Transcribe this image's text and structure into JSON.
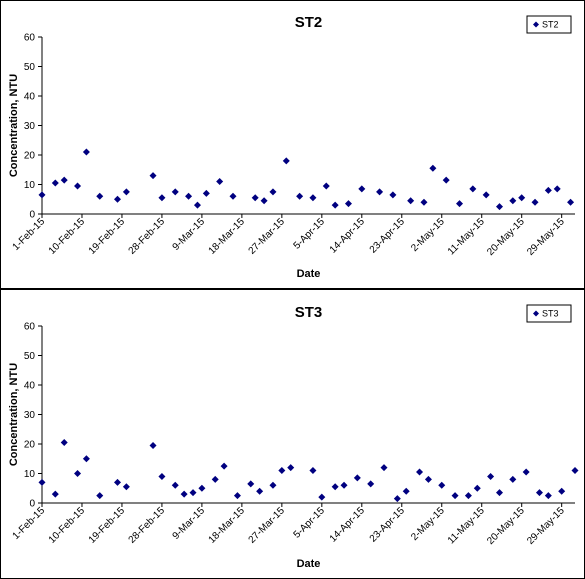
{
  "chart_data": [
    {
      "type": "scatter",
      "title": "ST2",
      "xlabel": "Date",
      "ylabel": "Concentration, NTU",
      "ylim": [
        0,
        60
      ],
      "yticks": [
        "0",
        "10",
        "20",
        "30",
        "40",
        "50",
        "60"
      ],
      "xlim": [
        "1-Feb-15",
        "1-Jun-15"
      ],
      "xticks": [
        "1-Feb-15",
        "10-Feb-15",
        "19-Feb-15",
        "28-Feb-15",
        "9-Mar-15",
        "18-Mar-15",
        "27-Mar-15",
        "5-Apr-15",
        "14-Apr-15",
        "23-Apr-15",
        "2-May-15",
        "11-May-15",
        "20-May-15",
        "29-May-15"
      ],
      "grid": false,
      "legend": "top-right",
      "marker_color": "#000080",
      "series": [
        {
          "name": "ST2",
          "x": [
            "1-Feb-15",
            "4-Feb-15",
            "6-Feb-15",
            "9-Feb-15",
            "11-Feb-15",
            "14-Feb-15",
            "18-Feb-15",
            "20-Feb-15",
            "26-Feb-15",
            "28-Feb-15",
            "3-Mar-15",
            "6-Mar-15",
            "8-Mar-15",
            "10-Mar-15",
            "13-Mar-15",
            "16-Mar-15",
            "21-Mar-15",
            "23-Mar-15",
            "25-Mar-15",
            "28-Mar-15",
            "31-Mar-15",
            "3-Apr-15",
            "6-Apr-15",
            "8-Apr-15",
            "11-Apr-15",
            "14-Apr-15",
            "18-Apr-15",
            "21-Apr-15",
            "25-Apr-15",
            "28-Apr-15",
            "30-Apr-15",
            "3-May-15",
            "6-May-15",
            "9-May-15",
            "12-May-15",
            "15-May-15",
            "18-May-15",
            "20-May-15",
            "23-May-15",
            "26-May-15",
            "28-May-15",
            "31-May-15",
            "2-Jun-15",
            "5-Jun-15"
          ],
          "y": [
            6.5,
            10.5,
            11.5,
            9.5,
            21,
            6,
            5,
            7.5,
            13,
            5.5,
            7.5,
            6,
            3,
            7,
            11,
            6,
            5.5,
            4.5,
            7.5,
            18,
            6,
            5.5,
            9.5,
            3,
            3.5,
            8.5,
            7.5,
            6.5,
            4.5,
            4,
            15.5,
            11.5,
            3.5,
            8.5,
            6.5,
            2.5,
            4.5,
            5.5,
            4,
            8,
            8.5,
            4,
            5.5,
            4
          ]
        }
      ]
    },
    {
      "type": "scatter",
      "title": "ST3",
      "xlabel": "Date",
      "ylabel": "Concentration, NTU",
      "ylim": [
        0,
        60
      ],
      "yticks": [
        "0",
        "10",
        "20",
        "30",
        "40",
        "50",
        "60"
      ],
      "xlim": [
        "1-Feb-15",
        "1-Jun-15"
      ],
      "xticks": [
        "1-Feb-15",
        "10-Feb-15",
        "19-Feb-15",
        "28-Feb-15",
        "9-Mar-15",
        "18-Mar-15",
        "27-Mar-15",
        "5-Apr-15",
        "14-Apr-15",
        "23-Apr-15",
        "2-May-15",
        "11-May-15",
        "20-May-15",
        "29-May-15"
      ],
      "grid": false,
      "legend": "top-right",
      "marker_color": "#000080",
      "series": [
        {
          "name": "ST3",
          "x": [
            "1-Feb-15",
            "4-Feb-15",
            "6-Feb-15",
            "9-Feb-15",
            "11-Feb-15",
            "14-Feb-15",
            "18-Feb-15",
            "20-Feb-15",
            "26-Feb-15",
            "28-Feb-15",
            "3-Mar-15",
            "5-Mar-15",
            "7-Mar-15",
            "9-Mar-15",
            "12-Mar-15",
            "14-Mar-15",
            "17-Mar-15",
            "20-Mar-15",
            "22-Mar-15",
            "25-Mar-15",
            "27-Mar-15",
            "29-Mar-15",
            "3-Apr-15",
            "5-Apr-15",
            "8-Apr-15",
            "10-Apr-15",
            "13-Apr-15",
            "16-Apr-15",
            "19-Apr-15",
            "22-Apr-15",
            "24-Apr-15",
            "27-Apr-15",
            "29-Apr-15",
            "2-May-15",
            "5-May-15",
            "8-May-15",
            "10-May-15",
            "13-May-15",
            "15-May-15",
            "18-May-15",
            "21-May-15",
            "24-May-15",
            "26-May-15",
            "29-May-15",
            "1-Jun-15",
            "4-Jun-15"
          ],
          "y": [
            7,
            3,
            20.5,
            10,
            15,
            2.5,
            7,
            5.5,
            19.5,
            9,
            6,
            3,
            3.5,
            5,
            8,
            12.5,
            2.5,
            6.5,
            4,
            6,
            11,
            12,
            11,
            2,
            5.5,
            6,
            8.5,
            6.5,
            12,
            1.5,
            4,
            10.5,
            8,
            6,
            2.5,
            2.5,
            5,
            9,
            3.5,
            8,
            10.5,
            3.5,
            2.5,
            4,
            11,
            13.5
          ]
        }
      ]
    }
  ]
}
